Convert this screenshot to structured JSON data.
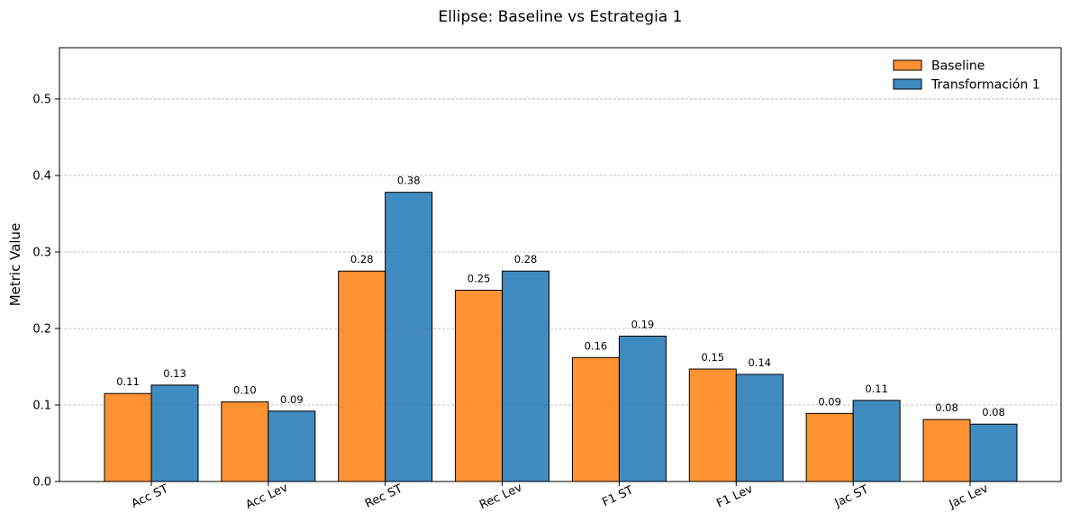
{
  "chart_data": {
    "type": "bar",
    "title": "Ellipse: Baseline vs Estrategia 1",
    "xlabel": "",
    "ylabel": "Metric Value",
    "categories": [
      "Acc ST",
      "Acc Lev",
      "Rec ST",
      "Rec Lev",
      "F1 ST",
      "F1 Lev",
      "Jac ST",
      "Jac Lev"
    ],
    "series": [
      {
        "name": "Baseline",
        "color": "#ff7f0e",
        "values": [
          0.115,
          0.104,
          0.275,
          0.25,
          0.162,
          0.147,
          0.089,
          0.081
        ],
        "labels": [
          "0.11",
          "0.10",
          "0.28",
          "0.25",
          "0.16",
          "0.15",
          "0.09",
          "0.08"
        ]
      },
      {
        "name": "Transformación 1",
        "color": "#1f77b4",
        "values": [
          0.126,
          0.092,
          0.378,
          0.275,
          0.19,
          0.14,
          0.106,
          0.075
        ],
        "labels": [
          "0.13",
          "0.09",
          "0.38",
          "0.28",
          "0.19",
          "0.14",
          "0.11",
          "0.08"
        ]
      }
    ],
    "ylim": [
      0,
      0.567
    ],
    "yticks": [
      "0.0",
      "0.1",
      "0.2",
      "0.3",
      "0.4",
      "0.5"
    ],
    "ytick_values": [
      0,
      0.1,
      0.2,
      0.3,
      0.4,
      0.5
    ],
    "grid": "y, dashed",
    "legend": "top-right"
  }
}
